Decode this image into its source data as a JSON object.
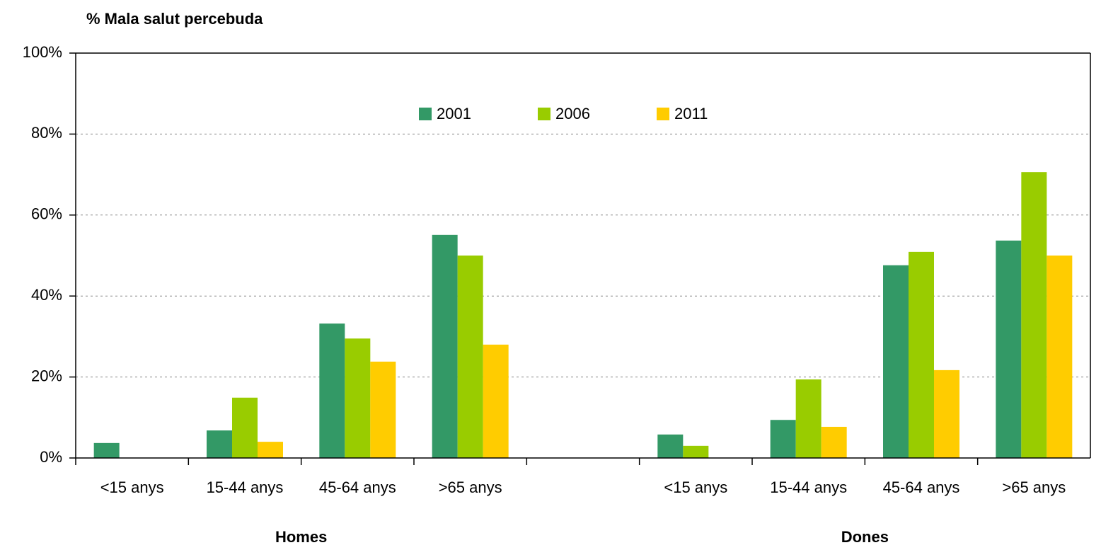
{
  "chart_data": {
    "type": "bar",
    "y_label": "% Mala salut percebuda",
    "categories": [
      "<15 anys",
      "15-44 anys",
      "45-64 anys",
      ">65 anys",
      null,
      "<15 anys",
      "15-44 anys",
      "45-64 anys",
      ">65 anys"
    ],
    "group_labels": [
      "Homes",
      "Dones"
    ],
    "series": [
      {
        "name": "2001",
        "color": "#339966",
        "values": [
          3.7,
          6.8,
          33.2,
          55.1,
          null,
          5.8,
          9.4,
          47.6,
          53.7
        ]
      },
      {
        "name": "2006",
        "color": "#99cc00",
        "values": [
          0,
          14.9,
          29.5,
          50.0,
          null,
          3.0,
          19.4,
          50.9,
          70.6
        ]
      },
      {
        "name": "2011",
        "color": "#ffcc00",
        "values": [
          0,
          4.0,
          23.8,
          28.0,
          null,
          0,
          7.7,
          21.7,
          50.0
        ]
      }
    ],
    "ylim": [
      0,
      100
    ],
    "yticks": [
      {
        "value": 0,
        "label": "0%"
      },
      {
        "value": 20,
        "label": "20%"
      },
      {
        "value": 40,
        "label": "40%"
      },
      {
        "value": 60,
        "label": "60%"
      },
      {
        "value": 80,
        "label": "80%"
      },
      {
        "value": 100,
        "label": "100%"
      }
    ],
    "grid": true,
    "legend": "top"
  }
}
